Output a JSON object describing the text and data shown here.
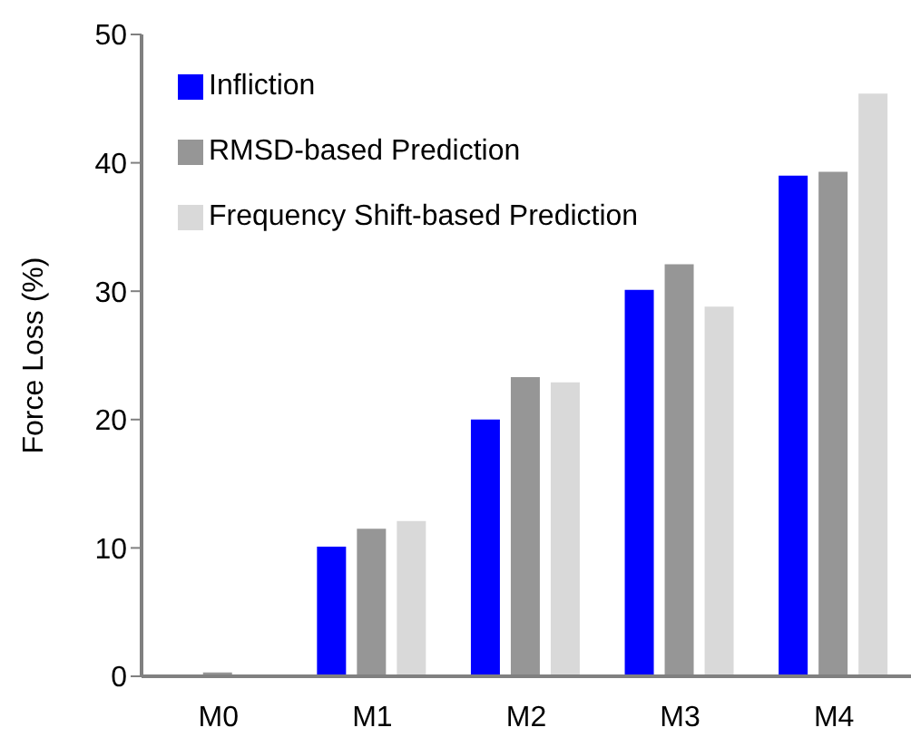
{
  "chart_data": {
    "type": "bar",
    "ylabel": "Force Loss (%)",
    "categories": [
      "M0",
      "M1",
      "M2",
      "M3",
      "M4"
    ],
    "series": [
      {
        "name": "Infliction",
        "color": "#0000ff",
        "values": [
          0,
          10.1,
          20,
          30.1,
          39
        ]
      },
      {
        "name": "RMSD-based Prediction",
        "color": "#969696",
        "values": [
          0.3,
          11.5,
          23.3,
          32.1,
          39.3
        ]
      },
      {
        "name": "Frequency Shift-based Prediction",
        "color": "#d9d9d9",
        "values": [
          0,
          12.1,
          22.9,
          28.8,
          45.4
        ]
      }
    ],
    "ylim": [
      0,
      50
    ],
    "yticks": [
      0,
      10,
      20,
      30,
      40,
      50
    ],
    "legend": "top left"
  }
}
